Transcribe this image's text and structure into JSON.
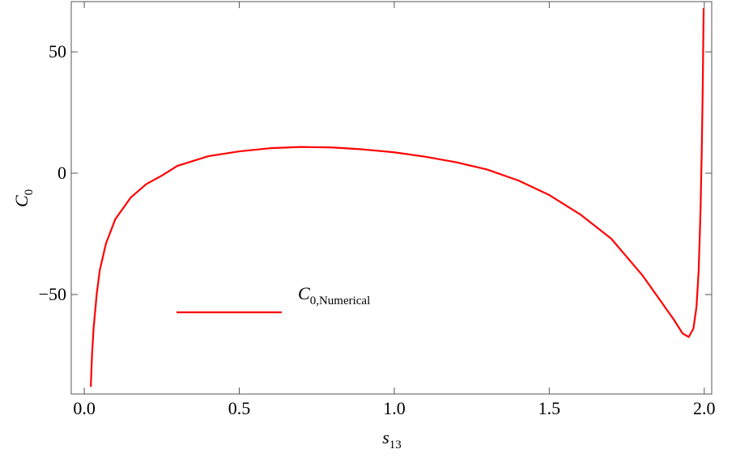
{
  "chart_data": {
    "type": "line",
    "x_label": "s13",
    "y_label": "C0",
    "xlim": [
      -0.042,
      2.024
    ],
    "ylim": [
      -91,
      70.7
    ],
    "xticks": [
      {
        "value": 0,
        "label": "0.0"
      },
      0.5,
      {
        "value": 1,
        "label": "1.0"
      },
      1.5,
      {
        "value": 2,
        "label": "2.0"
      }
    ],
    "yticks": [
      -50,
      0,
      50
    ],
    "x": [
      0.021,
      0.025,
      0.03,
      0.04,
      0.05,
      0.07,
      0.1,
      0.15,
      0.2,
      0.25,
      0.3,
      0.4,
      0.5,
      0.6,
      0.7,
      0.8,
      0.9,
      1.0,
      1.1,
      1.2,
      1.3,
      1.4,
      1.5,
      1.6,
      1.7,
      1.8,
      1.85,
      1.9,
      1.93,
      1.95,
      1.965,
      1.975,
      1.982,
      1.988,
      1.992,
      1.995,
      1.998
    ],
    "series": [
      {
        "name": "C0,Numerical",
        "color": "#ff0000",
        "values": [
          -88,
          -75,
          -64,
          -50,
          -40,
          -29,
          -19,
          -10,
          -4.5,
          -1,
          3,
          7,
          9,
          10.3,
          10.8,
          10.6,
          9.8,
          8.6,
          6.8,
          4.5,
          1.5,
          -3,
          -9,
          -17,
          -27,
          -42,
          -51,
          -60,
          -66,
          -67.5,
          -64,
          -55,
          -40,
          -15,
          10,
          35,
          68
        ]
      }
    ]
  }
}
